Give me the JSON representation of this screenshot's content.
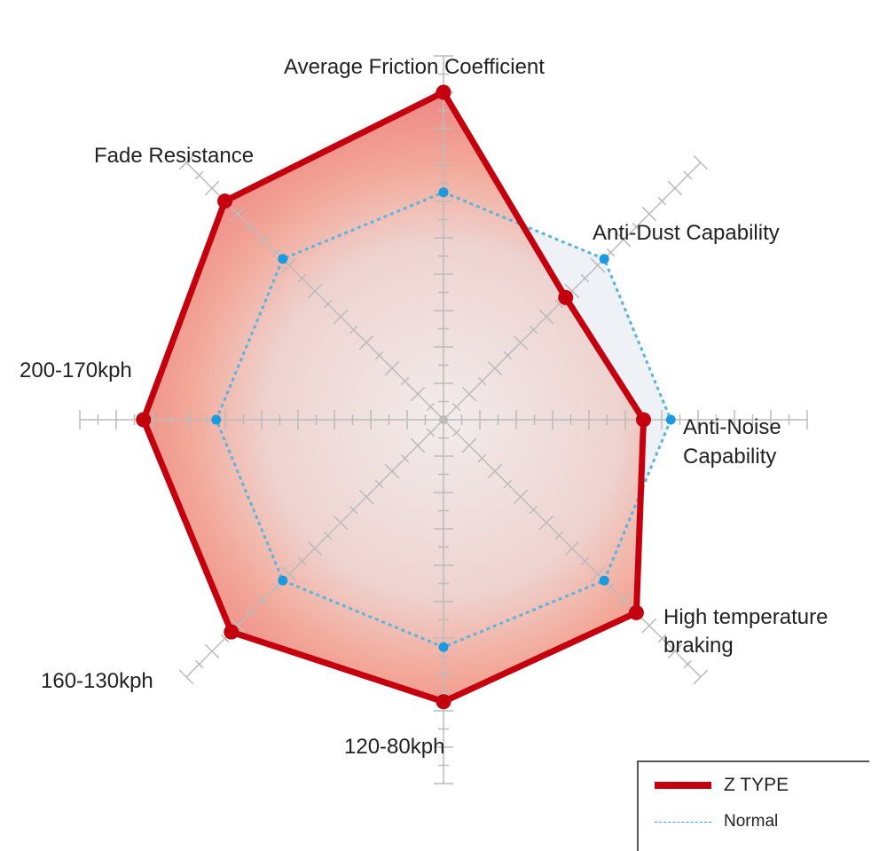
{
  "chart_data": {
    "type": "radar",
    "axes": [
      "Average Friction Coefficient",
      "Anti-Dust Capability",
      "Anti-Noise Capability",
      "High temperature braking",
      "120-80kph",
      "160-130kph",
      "200-170kph",
      "Fade Resistance"
    ],
    "axis_labels": {
      "a0": "Average Friction Coefficient",
      "a1": "Anti-Dust Capability",
      "a2a": "Anti-Noise",
      "a2b": "Capability",
      "a3a": "High temperature",
      "a3b": "braking",
      "a4": "120-80kph",
      "a5": "160-130kph",
      "a6": "200-170kph",
      "a7": "Fade Resistance"
    },
    "range": [
      0,
      20
    ],
    "grid": true,
    "series": [
      {
        "name": "Z TYPE",
        "color": "#c4000f",
        "values": [
          18,
          9.5,
          11,
          15,
          15.5,
          16.5,
          16.5,
          17
        ]
      },
      {
        "name": "Normal",
        "color": "#2a9fde",
        "values": [
          12.5,
          12.5,
          12.5,
          12.5,
          12.5,
          12.5,
          12.5,
          12.5
        ]
      }
    ],
    "legend": {
      "placement": "bottom-right",
      "z_label": "Z TYPE",
      "normal_label": "Normal"
    }
  }
}
